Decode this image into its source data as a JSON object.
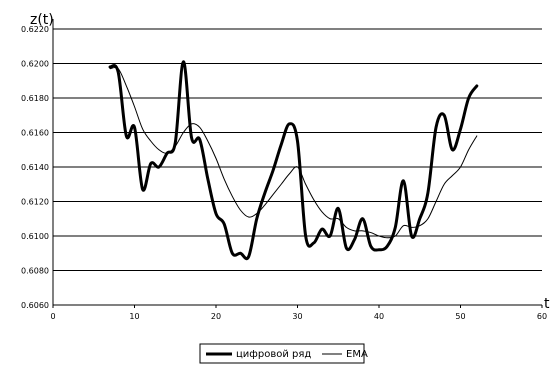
{
  "chart_data": {
    "type": "line",
    "title": "",
    "xlabel": "t",
    "ylabel": "z(t)",
    "xlim": [
      0,
      60
    ],
    "ylim": [
      0.606,
      0.622
    ],
    "xticks": [
      "0",
      "10",
      "20",
      "30",
      "40",
      "50",
      "60"
    ],
    "yticks": [
      "0.6060",
      "0.6080",
      "0.6100",
      "0.6120",
      "0.6140",
      "0.6160",
      "0.6180",
      "0.6200",
      "0.6220"
    ],
    "grid": "horizontal",
    "legend_position": "bottom",
    "series": [
      {
        "name": "цифровой ряд",
        "color": "#000000",
        "style": "thick",
        "x": [
          7,
          8,
          9,
          10,
          11,
          12,
          13,
          14,
          15,
          16,
          17,
          18,
          19,
          20,
          21,
          22,
          23,
          24,
          25,
          26,
          27,
          28,
          29,
          30,
          31,
          32,
          33,
          34,
          35,
          36,
          37,
          38,
          39,
          40,
          41,
          42,
          43,
          44,
          45,
          46,
          47,
          48,
          49,
          50,
          51,
          52
        ],
        "y": [
          0.6198,
          0.6195,
          0.6158,
          0.6163,
          0.6127,
          0.6142,
          0.614,
          0.6148,
          0.6154,
          0.6201,
          0.6157,
          0.6156,
          0.6133,
          0.6113,
          0.6107,
          0.609,
          0.609,
          0.6088,
          0.611,
          0.6125,
          0.6138,
          0.6153,
          0.6165,
          0.6155,
          0.61,
          0.6096,
          0.6104,
          0.61,
          0.6116,
          0.6093,
          0.6098,
          0.611,
          0.6094,
          0.6092,
          0.6094,
          0.6105,
          0.6132,
          0.61,
          0.611,
          0.6125,
          0.6163,
          0.617,
          0.615,
          0.6162,
          0.618,
          0.6187
        ]
      },
      {
        "name": "EMA",
        "color": "#000000",
        "style": "thin",
        "x": [
          7,
          8,
          9,
          10,
          11,
          12,
          13,
          14,
          15,
          16,
          17,
          18,
          19,
          20,
          21,
          22,
          23,
          24,
          25,
          26,
          27,
          28,
          29,
          30,
          31,
          32,
          33,
          34,
          35,
          36,
          37,
          38,
          39,
          40,
          41,
          42,
          43,
          44,
          45,
          46,
          47,
          48,
          49,
          50,
          51,
          52
        ],
        "y": [
          0.6197,
          0.6197,
          0.6187,
          0.6175,
          0.6162,
          0.6155,
          0.615,
          0.6148,
          0.6152,
          0.616,
          0.6165,
          0.6163,
          0.6155,
          0.6145,
          0.6133,
          0.6123,
          0.6115,
          0.6111,
          0.6113,
          0.6118,
          0.6124,
          0.613,
          0.6136,
          0.614,
          0.613,
          0.6121,
          0.6114,
          0.611,
          0.611,
          0.6105,
          0.6103,
          0.6103,
          0.6102,
          0.61,
          0.6099,
          0.61,
          0.6106,
          0.6105,
          0.6106,
          0.611,
          0.612,
          0.613,
          0.6135,
          0.614,
          0.615,
          0.6158
        ]
      }
    ]
  }
}
